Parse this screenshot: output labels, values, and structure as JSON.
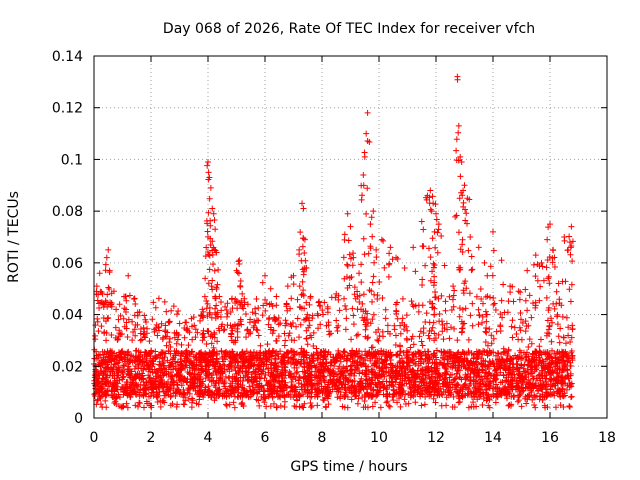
{
  "chart_data": {
    "type": "scatter",
    "title": "Day 068 of 2026, Rate Of TEC Index for receiver vfch",
    "xlabel": "GPS time / hours",
    "ylabel": "ROTI / TECUs",
    "xlim": [
      0,
      18
    ],
    "ylim": [
      0,
      0.14
    ],
    "x_ticks": [
      0,
      2,
      4,
      6,
      8,
      10,
      12,
      14,
      16,
      18
    ],
    "x_tick_labels": [
      "0",
      "2",
      "4",
      "6",
      "8",
      "10",
      "12",
      "14",
      "16",
      "18"
    ],
    "y_ticks": [
      0,
      0.02,
      0.04,
      0.06,
      0.08,
      0.1,
      0.12,
      0.14
    ],
    "y_tick_labels": [
      "0",
      "0.02",
      "0.04",
      "0.06",
      "0.08",
      "0.1",
      "0.12",
      "0.14"
    ],
    "grid": true,
    "marker": "+",
    "series": [
      {
        "name": "ROTI",
        "color": "#ff0000",
        "x": [
          0.1,
          0.2,
          0.3,
          0.45,
          0.5,
          0.55,
          0.7,
          0.9,
          1.1,
          1.2,
          1.4,
          1.6,
          1.8,
          2.2,
          2.5,
          2.9,
          3.2,
          3.5,
          3.8,
          3.9,
          4.0,
          4.02,
          4.05,
          4.1,
          4.15,
          4.2,
          4.25,
          4.3,
          4.4,
          4.6,
          4.8,
          5.0,
          5.1,
          5.15,
          5.2,
          5.4,
          5.7,
          6.0,
          6.2,
          6.4,
          6.8,
          7.0,
          7.2,
          7.3,
          7.35,
          7.4,
          7.45,
          7.6,
          7.9,
          8.2,
          8.5,
          8.8,
          8.9,
          9.0,
          9.1,
          9.3,
          9.45,
          9.5,
          9.55,
          9.6,
          9.7,
          9.8,
          9.9,
          10.1,
          10.4,
          10.6,
          10.9,
          11.2,
          11.5,
          11.7,
          11.8,
          11.85,
          11.9,
          11.95,
          12.0,
          12.1,
          12.3,
          12.6,
          12.75,
          12.8,
          12.85,
          12.9,
          12.95,
          13.0,
          13.1,
          13.2,
          13.5,
          13.7,
          13.8,
          14.0,
          14.3,
          14.6,
          14.9,
          15.2,
          15.5,
          15.7,
          15.9,
          16.0,
          16.1,
          16.3,
          16.5,
          16.7,
          16.75
        ],
        "y": [
          0.051,
          0.056,
          0.048,
          0.062,
          0.065,
          0.057,
          0.049,
          0.044,
          0.047,
          0.055,
          0.046,
          0.041,
          0.038,
          0.036,
          0.034,
          0.033,
          0.037,
          0.039,
          0.042,
          0.054,
          0.099,
          0.095,
          0.093,
          0.089,
          0.081,
          0.079,
          0.073,
          0.064,
          0.047,
          0.043,
          0.041,
          0.057,
          0.061,
          0.053,
          0.048,
          0.044,
          0.046,
          0.055,
          0.05,
          0.047,
          0.051,
          0.055,
          0.065,
          0.083,
          0.081,
          0.069,
          0.058,
          0.047,
          0.045,
          0.043,
          0.048,
          0.071,
          0.079,
          0.074,
          0.062,
          0.056,
          0.094,
          0.101,
          0.11,
          0.118,
          0.075,
          0.08,
          0.065,
          0.069,
          0.066,
          0.062,
          0.058,
          0.066,
          0.076,
          0.086,
          0.088,
          0.08,
          0.083,
          0.072,
          0.079,
          0.075,
          0.059,
          0.051,
          0.132,
          0.113,
          0.101,
          0.099,
          0.088,
          0.09,
          0.085,
          0.07,
          0.066,
          0.06,
          0.055,
          0.072,
          0.061,
          0.051,
          0.049,
          0.057,
          0.063,
          0.06,
          0.069,
          0.075,
          0.065,
          0.052,
          0.07,
          0.068,
          0.074
        ]
      }
    ],
    "background_band": {
      "x_start": 0,
      "x_end": 16.8,
      "y_low": 0.004,
      "y_high": 0.035,
      "dense_low": 0.008,
      "dense_high": 0.026
    }
  }
}
